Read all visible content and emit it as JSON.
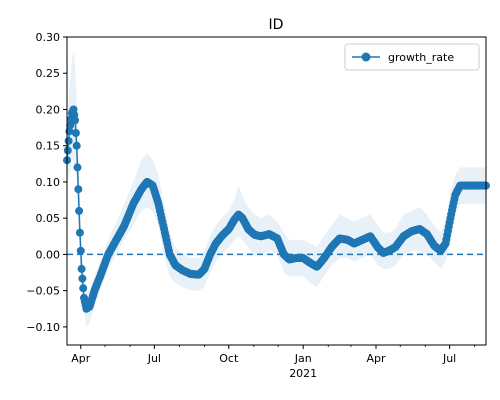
{
  "chart_data": {
    "type": "line",
    "title": "ID",
    "xlabel": "",
    "ylabel": "",
    "x_range": [
      "2020-03-15",
      "2021-08-15"
    ],
    "ylim": [
      -0.125,
      0.3
    ],
    "yticks": [
      -0.1,
      -0.05,
      0.0,
      0.05,
      0.1,
      0.15,
      0.2,
      0.25,
      0.3
    ],
    "ytick_labels": [
      "−0.10",
      "−0.05",
      "0.00",
      "0.05",
      "0.10",
      "0.15",
      "0.20",
      "0.25",
      "0.30"
    ],
    "xticks_major": [
      {
        "date": "2020-04-01",
        "label": "Apr"
      },
      {
        "date": "2020-07-01",
        "label": "Jul"
      },
      {
        "date": "2020-10-01",
        "label": "Oct"
      },
      {
        "date": "2021-01-01",
        "label": "Jan"
      },
      {
        "date": "2021-04-01",
        "label": "Apr"
      },
      {
        "date": "2021-07-01",
        "label": "Jul"
      }
    ],
    "year_label": {
      "date": "2021-01-01",
      "label": "2021"
    },
    "xticks_minor": [
      "2020-05-01",
      "2020-06-01",
      "2020-08-01",
      "2020-09-01",
      "2020-11-01",
      "2020-12-01",
      "2021-02-01",
      "2021-03-01",
      "2021-05-01",
      "2021-06-01",
      "2021-08-01"
    ],
    "reference_line": {
      "y": 0.0,
      "style": "dashed",
      "color": "#1f77b4"
    },
    "legend": {
      "position": "top-right",
      "entries": [
        "growth_rate"
      ]
    },
    "grid": false,
    "series": [
      {
        "name": "growth_rate",
        "color": "#1f77b4",
        "marker": "circle",
        "band_color": "#1f77b4",
        "points": [
          {
            "x": "2020-03-15",
            "y": 0.13,
            "lo": 0.1,
            "hi": 0.16
          },
          {
            "x": "2020-03-18",
            "y": 0.17,
            "lo": 0.11,
            "hi": 0.23
          },
          {
            "x": "2020-03-21",
            "y": 0.195,
            "lo": 0.13,
            "hi": 0.27
          },
          {
            "x": "2020-03-23",
            "y": 0.2,
            "lo": 0.13,
            "hi": 0.28
          },
          {
            "x": "2020-03-25",
            "y": 0.185,
            "lo": 0.12,
            "hi": 0.26
          },
          {
            "x": "2020-03-27",
            "y": 0.15,
            "lo": 0.1,
            "hi": 0.21
          },
          {
            "x": "2020-03-29",
            "y": 0.09,
            "lo": 0.05,
            "hi": 0.14
          },
          {
            "x": "2020-03-31",
            "y": 0.03,
            "lo": 0.0,
            "hi": 0.07
          },
          {
            "x": "2020-04-02",
            "y": -0.02,
            "lo": -0.05,
            "hi": 0.01
          },
          {
            "x": "2020-04-05",
            "y": -0.06,
            "lo": -0.08,
            "hi": -0.03
          },
          {
            "x": "2020-04-08",
            "y": -0.075,
            "lo": -0.1,
            "hi": -0.05
          },
          {
            "x": "2020-04-12",
            "y": -0.072,
            "lo": -0.095,
            "hi": -0.05
          },
          {
            "x": "2020-04-18",
            "y": -0.05,
            "lo": -0.07,
            "hi": -0.03
          },
          {
            "x": "2020-04-25",
            "y": -0.03,
            "lo": -0.05,
            "hi": -0.01
          },
          {
            "x": "2020-05-05",
            "y": 0.0,
            "lo": -0.02,
            "hi": 0.02
          },
          {
            "x": "2020-05-15",
            "y": 0.02,
            "lo": 0.0,
            "hi": 0.045
          },
          {
            "x": "2020-05-25",
            "y": 0.04,
            "lo": 0.02,
            "hi": 0.07
          },
          {
            "x": "2020-06-05",
            "y": 0.07,
            "lo": 0.04,
            "hi": 0.1
          },
          {
            "x": "2020-06-15",
            "y": 0.09,
            "lo": 0.06,
            "hi": 0.13
          },
          {
            "x": "2020-06-22",
            "y": 0.1,
            "lo": 0.065,
            "hi": 0.14
          },
          {
            "x": "2020-06-29",
            "y": 0.095,
            "lo": 0.06,
            "hi": 0.13
          },
          {
            "x": "2020-07-06",
            "y": 0.07,
            "lo": 0.04,
            "hi": 0.11
          },
          {
            "x": "2020-07-13",
            "y": 0.035,
            "lo": 0.0,
            "hi": 0.07
          },
          {
            "x": "2020-07-20",
            "y": 0.0,
            "lo": -0.03,
            "hi": 0.03
          },
          {
            "x": "2020-07-27",
            "y": -0.015,
            "lo": -0.04,
            "hi": 0.01
          },
          {
            "x": "2020-08-05",
            "y": -0.022,
            "lo": -0.045,
            "hi": 0.0
          },
          {
            "x": "2020-08-15",
            "y": -0.027,
            "lo": -0.05,
            "hi": -0.005
          },
          {
            "x": "2020-08-25",
            "y": -0.028,
            "lo": -0.05,
            "hi": -0.005
          },
          {
            "x": "2020-09-01",
            "y": -0.02,
            "lo": -0.045,
            "hi": 0.005
          },
          {
            "x": "2020-09-08",
            "y": 0.0,
            "lo": -0.025,
            "hi": 0.025
          },
          {
            "x": "2020-09-15",
            "y": 0.015,
            "lo": -0.01,
            "hi": 0.04
          },
          {
            "x": "2020-09-22",
            "y": 0.025,
            "lo": 0.0,
            "hi": 0.05
          },
          {
            "x": "2020-10-01",
            "y": 0.035,
            "lo": 0.01,
            "hi": 0.06
          },
          {
            "x": "2020-10-08",
            "y": 0.048,
            "lo": 0.02,
            "hi": 0.075
          },
          {
            "x": "2020-10-13",
            "y": 0.055,
            "lo": 0.025,
            "hi": 0.095
          },
          {
            "x": "2020-10-18",
            "y": 0.05,
            "lo": 0.02,
            "hi": 0.08
          },
          {
            "x": "2020-10-25",
            "y": 0.035,
            "lo": 0.01,
            "hi": 0.065
          },
          {
            "x": "2020-11-02",
            "y": 0.027,
            "lo": 0.0,
            "hi": 0.055
          },
          {
            "x": "2020-11-10",
            "y": 0.025,
            "lo": 0.0,
            "hi": 0.05
          },
          {
            "x": "2020-11-20",
            "y": 0.028,
            "lo": 0.005,
            "hi": 0.055
          },
          {
            "x": "2020-11-30",
            "y": 0.022,
            "lo": 0.0,
            "hi": 0.045
          },
          {
            "x": "2020-12-08",
            "y": 0.0,
            "lo": -0.025,
            "hi": 0.03
          },
          {
            "x": "2020-12-15",
            "y": -0.007,
            "lo": -0.03,
            "hi": 0.02
          },
          {
            "x": "2020-12-23",
            "y": -0.005,
            "lo": -0.03,
            "hi": 0.02
          },
          {
            "x": "2021-01-01",
            "y": -0.005,
            "lo": -0.03,
            "hi": 0.02
          },
          {
            "x": "2021-01-10",
            "y": -0.012,
            "lo": -0.04,
            "hi": 0.015
          },
          {
            "x": "2021-01-18",
            "y": -0.017,
            "lo": -0.045,
            "hi": 0.01
          },
          {
            "x": "2021-01-27",
            "y": -0.005,
            "lo": -0.03,
            "hi": 0.025
          },
          {
            "x": "2021-02-05",
            "y": 0.01,
            "lo": -0.015,
            "hi": 0.04
          },
          {
            "x": "2021-02-15",
            "y": 0.022,
            "lo": -0.005,
            "hi": 0.055
          },
          {
            "x": "2021-02-25",
            "y": 0.02,
            "lo": -0.005,
            "hi": 0.05
          },
          {
            "x": "2021-03-05",
            "y": 0.015,
            "lo": -0.01,
            "hi": 0.045
          },
          {
            "x": "2021-03-15",
            "y": 0.02,
            "lo": -0.005,
            "hi": 0.05
          },
          {
            "x": "2021-03-25",
            "y": 0.025,
            "lo": 0.0,
            "hi": 0.055
          },
          {
            "x": "2021-04-03",
            "y": 0.01,
            "lo": -0.015,
            "hi": 0.04
          },
          {
            "x": "2021-04-10",
            "y": 0.002,
            "lo": -0.02,
            "hi": 0.03
          },
          {
            "x": "2021-04-17",
            "y": 0.005,
            "lo": -0.02,
            "hi": 0.03
          },
          {
            "x": "2021-04-25",
            "y": 0.01,
            "lo": -0.015,
            "hi": 0.035
          },
          {
            "x": "2021-05-05",
            "y": 0.025,
            "lo": 0.0,
            "hi": 0.055
          },
          {
            "x": "2021-05-15",
            "y": 0.032,
            "lo": 0.005,
            "hi": 0.06
          },
          {
            "x": "2021-05-25",
            "y": 0.035,
            "lo": 0.005,
            "hi": 0.065
          },
          {
            "x": "2021-06-03",
            "y": 0.028,
            "lo": 0.0,
            "hi": 0.055
          },
          {
            "x": "2021-06-12",
            "y": 0.012,
            "lo": -0.01,
            "hi": 0.04
          },
          {
            "x": "2021-06-20",
            "y": 0.005,
            "lo": -0.02,
            "hi": 0.03
          },
          {
            "x": "2021-06-26",
            "y": 0.015,
            "lo": -0.01,
            "hi": 0.045
          },
          {
            "x": "2021-07-02",
            "y": 0.05,
            "lo": 0.02,
            "hi": 0.085
          },
          {
            "x": "2021-07-08",
            "y": 0.082,
            "lo": 0.055,
            "hi": 0.11
          },
          {
            "x": "2021-07-14",
            "y": 0.095,
            "lo": 0.07,
            "hi": 0.12
          },
          {
            "x": "2021-07-25",
            "y": 0.095,
            "lo": 0.07,
            "hi": 0.12
          },
          {
            "x": "2021-08-15",
            "y": 0.095,
            "lo": 0.07,
            "hi": 0.12
          }
        ]
      }
    ]
  }
}
